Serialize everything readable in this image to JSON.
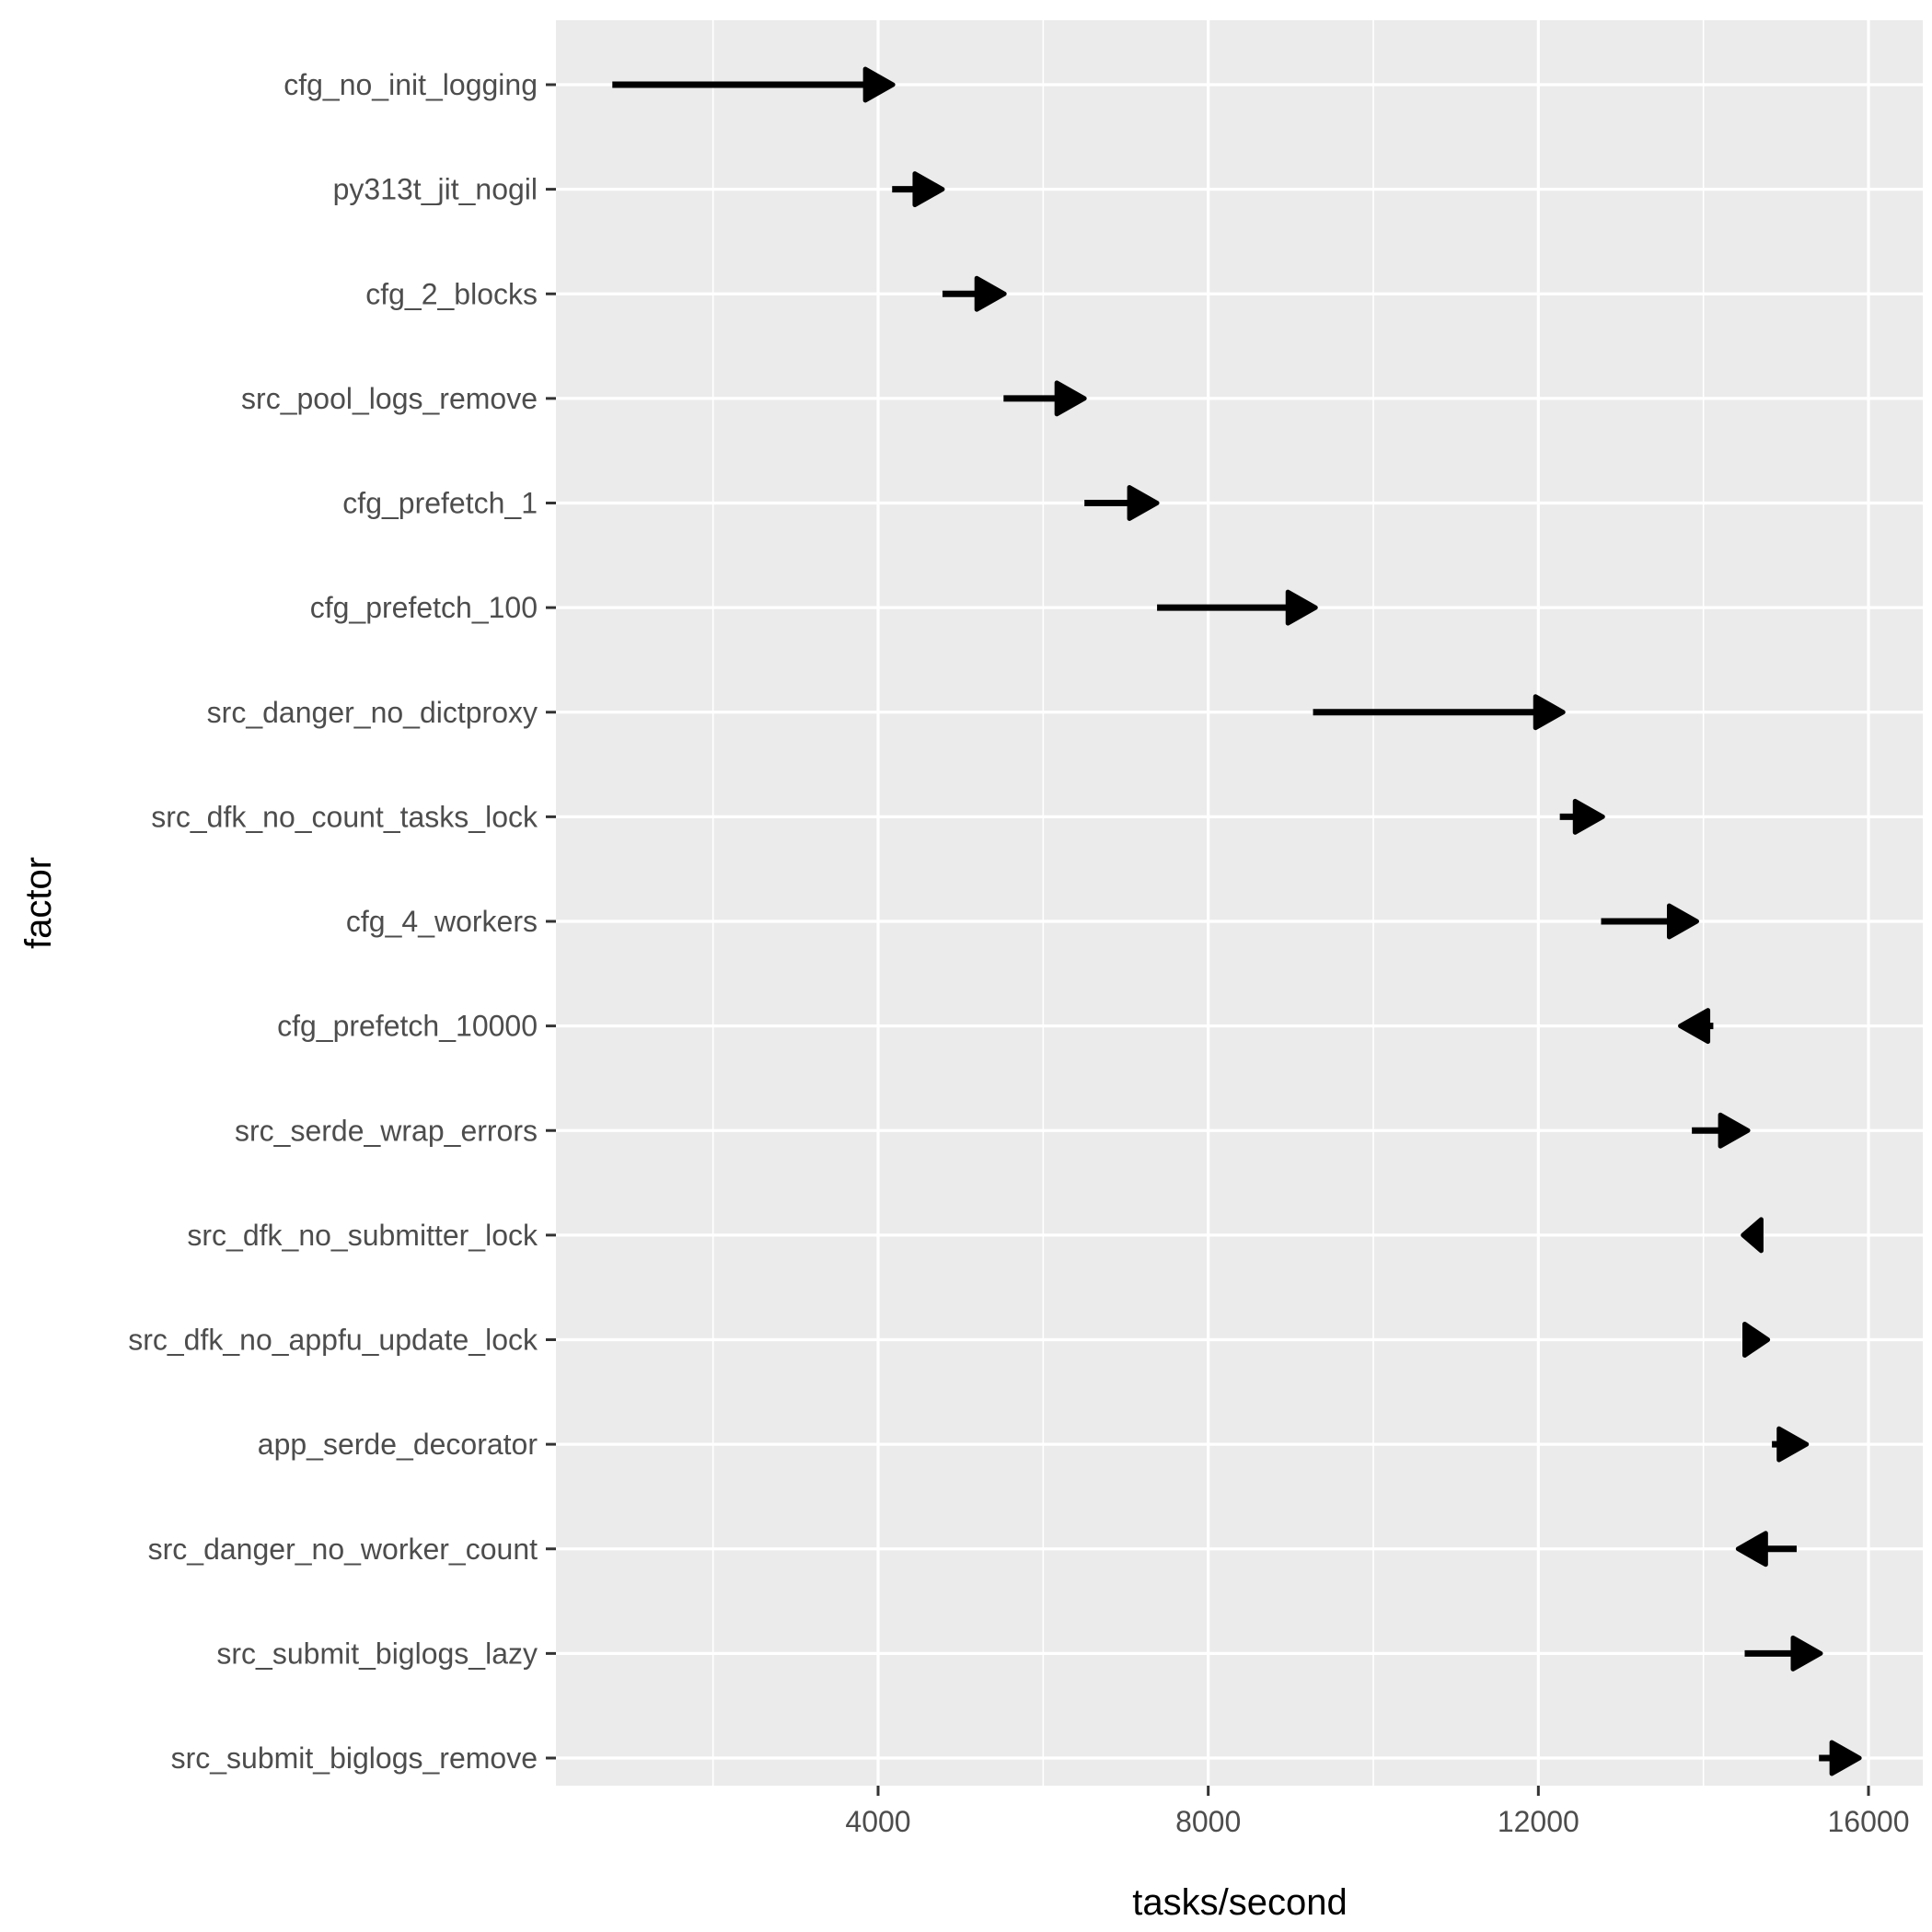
{
  "chart_data": {
    "type": "arrow",
    "xlabel": "tasks/second",
    "ylabel": "factor",
    "xlim": [
      0,
      16300
    ],
    "x_ticks": [
      4000,
      8000,
      12000,
      16000
    ],
    "x_tick_labels": [
      "4000",
      "8000",
      "12000",
      "16000"
    ],
    "grid": true,
    "series": [
      {
        "categories": [
          "cfg_no_init_logging",
          "py313t_jit_nogil",
          "cfg_2_blocks",
          "src_pool_logs_remove",
          "cfg_prefetch_1",
          "cfg_prefetch_100",
          "src_danger_no_dictproxy",
          "src_dfk_no_count_tasks_lock",
          "cfg_4_workers",
          "cfg_prefetch_10000",
          "src_serde_wrap_errors",
          "src_dfk_no_submitter_lock",
          "src_dfk_no_appfu_update_lock",
          "app_serde_decorator",
          "src_danger_no_worker_count",
          "src_submit_biglogs_lazy",
          "src_submit_biglogs_remove"
        ],
        "from": [
          780,
          4170,
          4780,
          5520,
          6500,
          7380,
          9270,
          12260,
          12760,
          14120,
          13860,
          14700,
          14500,
          14830,
          15130,
          14500,
          15400
        ],
        "to": [
          4180,
          4780,
          5530,
          6500,
          7380,
          9300,
          12300,
          12780,
          13920,
          13720,
          14540,
          14480,
          14780,
          15250,
          14420,
          15420,
          15890
        ]
      }
    ],
    "colors": {
      "panel": "#ebebeb",
      "grid": "#ffffff",
      "arrow": "#000000",
      "tick_label": "#4d4d4d",
      "axis_title": "#000000"
    }
  }
}
